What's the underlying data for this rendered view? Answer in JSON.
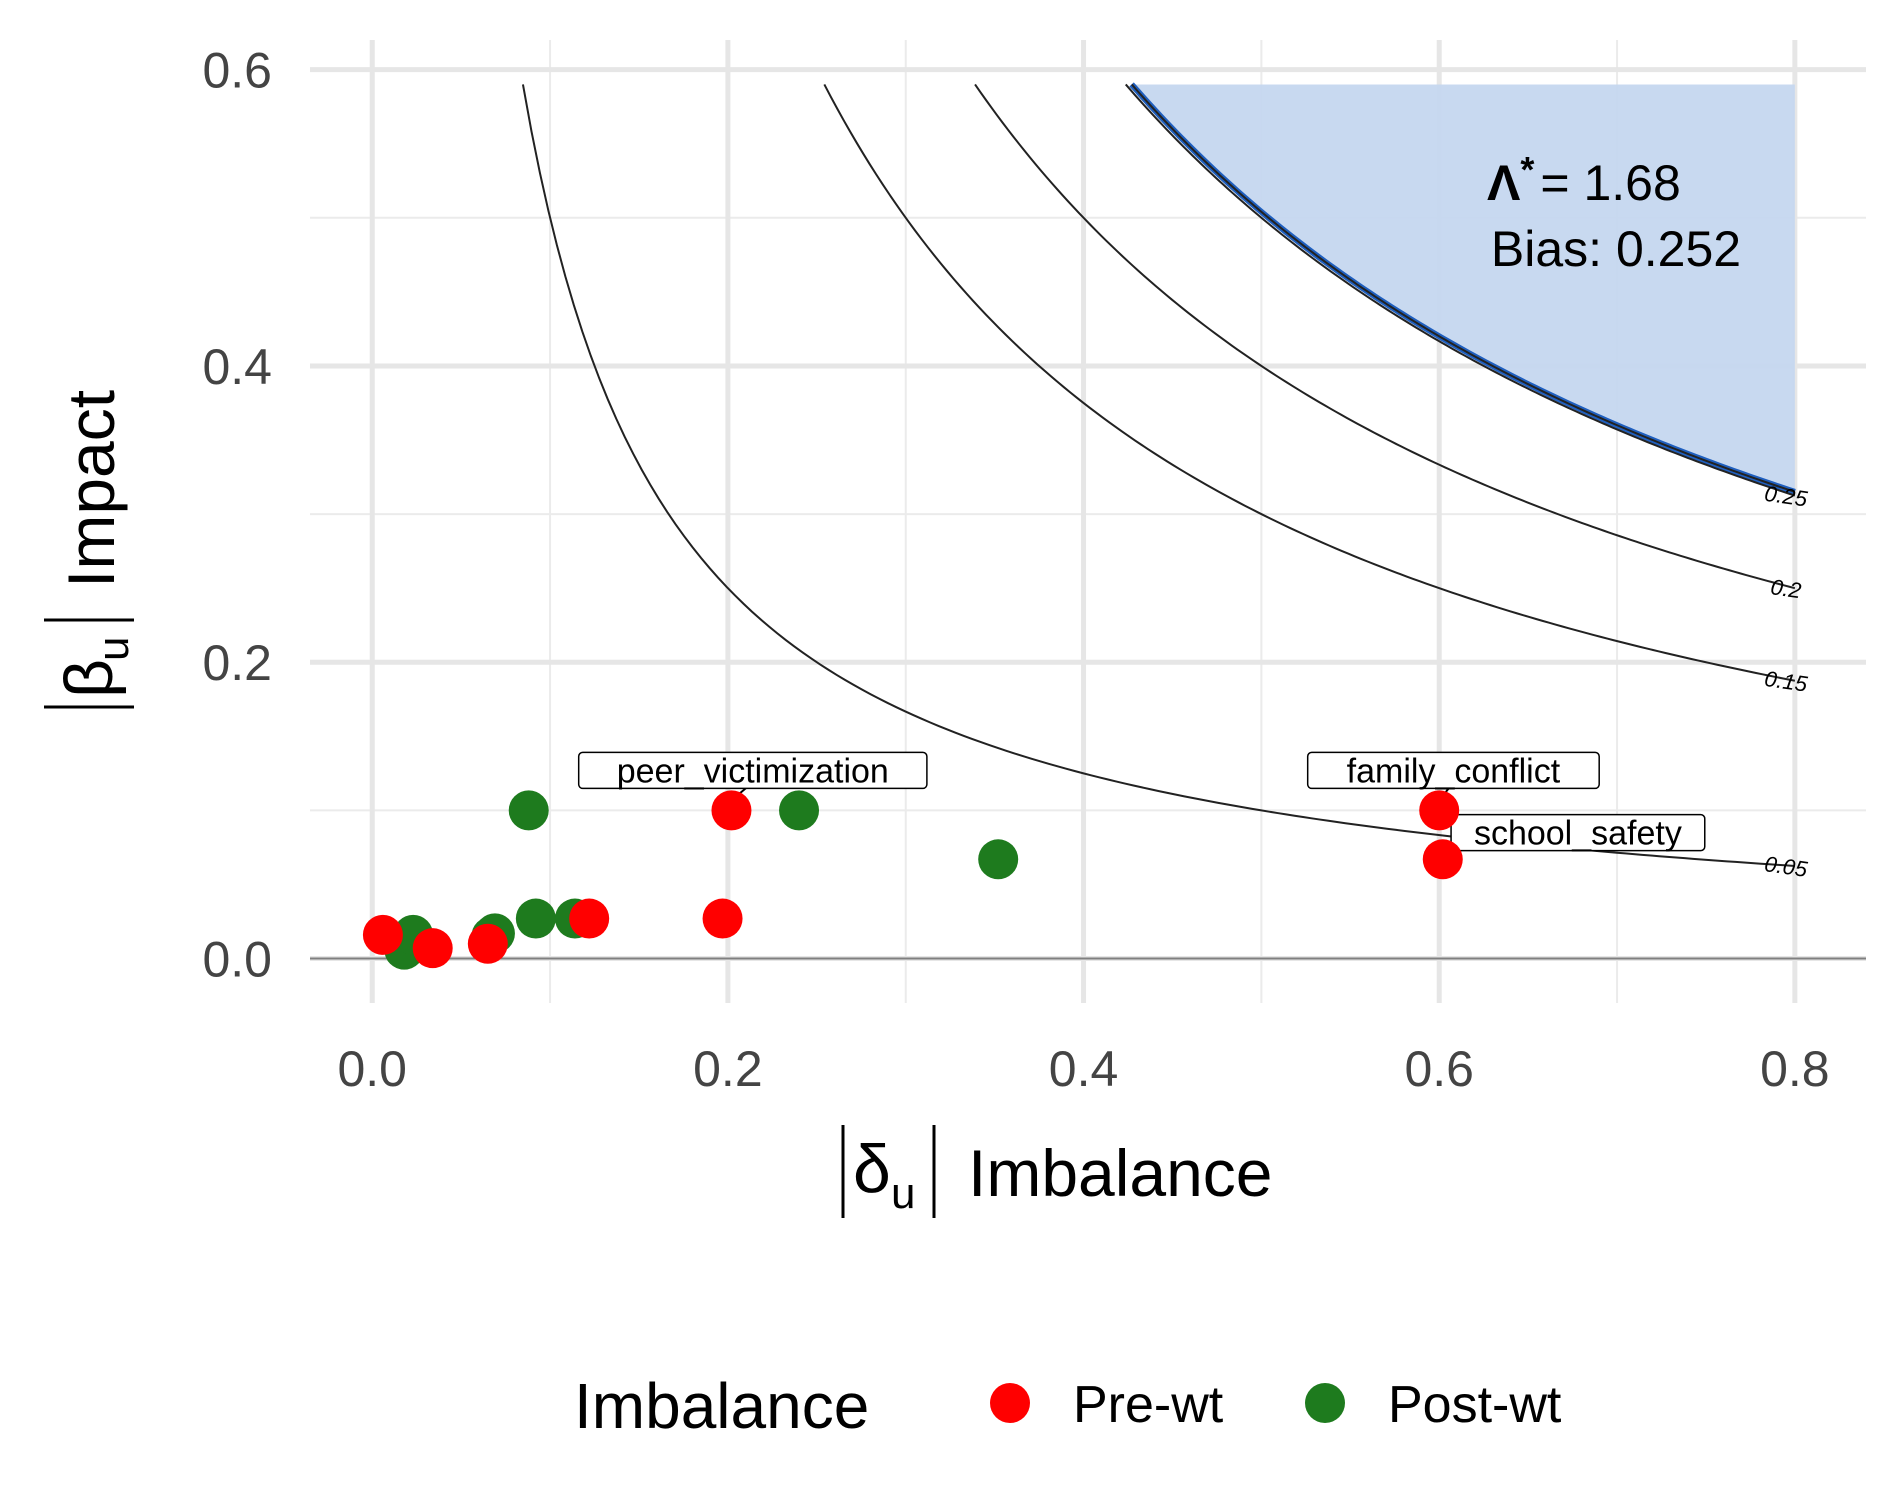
{
  "chart_data": {
    "type": "scatter",
    "xlabel": "Imbalance",
    "xlabel_symbol": "δ",
    "xlabel_subscript": "u",
    "ylabel": "Impact",
    "ylabel_symbol": "β",
    "ylabel_subscript": "u",
    "xlim": [
      -0.035,
      0.84
    ],
    "ylim": [
      -0.03,
      0.62
    ],
    "x_ticks": [
      0.0,
      0.2,
      0.4,
      0.6,
      0.8
    ],
    "x_tick_labels": [
      "0.0",
      "0.2",
      "0.4",
      "0.6",
      "0.8"
    ],
    "x_minor_ticks": [
      0.1,
      0.3,
      0.5,
      0.7
    ],
    "y_ticks": [
      0.0,
      0.2,
      0.4,
      0.6
    ],
    "y_tick_labels": [
      "0.0",
      "0.2",
      "0.4",
      "0.6"
    ],
    "y_minor_ticks": [
      0.1,
      0.3,
      0.5
    ],
    "grid": true,
    "legend_position": "bottom",
    "legend": {
      "title": "Imbalance",
      "items": [
        {
          "label": "Pre-wt",
          "color": "#ff0000"
        },
        {
          "label": "Post-wt",
          "color": "#1e7b1e"
        }
      ]
    },
    "annotation": {
      "symbol": "Λ",
      "superscript": "*",
      "value_text": "= 1.68",
      "bias_text": "Bias: 0.252",
      "x": 0.7,
      "y": 0.5
    },
    "critical_region": {
      "bias": 0.252,
      "x_range": [
        0.427,
        0.8
      ],
      "y_max": 0.59,
      "fill_color": "#c5d7ef",
      "line_color": "#1f5fbf"
    },
    "contours": [
      {
        "level": 0.05,
        "label": "0.05"
      },
      {
        "level": 0.15,
        "label": "0.15"
      },
      {
        "level": 0.2,
        "label": "0.2"
      },
      {
        "level": 0.25,
        "label": "0.25"
      }
    ],
    "contour_x_max": 0.8,
    "contour_y_max": 0.59,
    "series": [
      {
        "name": "Pre-wt",
        "color": "#ff0000",
        "points": [
          {
            "x": 0.006,
            "y": 0.016
          },
          {
            "x": 0.034,
            "y": 0.007
          },
          {
            "x": 0.065,
            "y": 0.01
          },
          {
            "x": 0.122,
            "y": 0.027
          },
          {
            "x": 0.197,
            "y": 0.027
          },
          {
            "x": 0.202,
            "y": 0.1
          },
          {
            "x": 0.6,
            "y": 0.1
          },
          {
            "x": 0.602,
            "y": 0.067
          }
        ]
      },
      {
        "name": "Post-wt",
        "color": "#1e7b1e",
        "points": [
          {
            "x": 0.018,
            "y": 0.006
          },
          {
            "x": 0.023,
            "y": 0.016
          },
          {
            "x": 0.067,
            "y": 0.015
          },
          {
            "x": 0.069,
            "y": 0.017
          },
          {
            "x": 0.088,
            "y": 0.1
          },
          {
            "x": 0.092,
            "y": 0.027
          },
          {
            "x": 0.114,
            "y": 0.027
          },
          {
            "x": 0.24,
            "y": 0.1
          },
          {
            "x": 0.352,
            "y": 0.067
          }
        ]
      }
    ],
    "point_labels": [
      {
        "text": "peer_victimization",
        "x": 0.214,
        "y": 0.127,
        "px": 0.202,
        "py": 0.1
      },
      {
        "text": "family_conflict",
        "x": 0.608,
        "y": 0.127,
        "px": 0.6,
        "py": 0.1
      },
      {
        "text": "school_safety",
        "x": 0.678,
        "y": 0.085,
        "px": 0.602,
        "py": 0.067
      }
    ]
  }
}
